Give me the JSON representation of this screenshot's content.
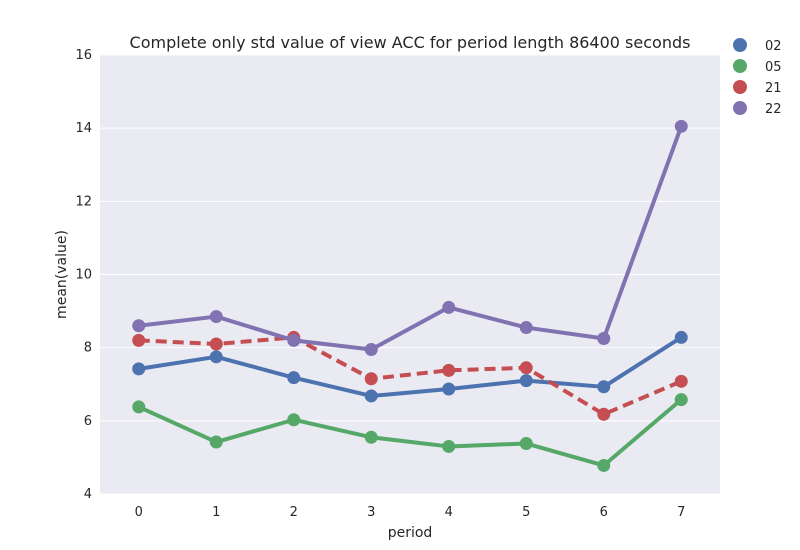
{
  "chart_data": {
    "type": "line",
    "title": "Complete only std value of view ACC for period length 86400 seconds",
    "xlabel": "period",
    "ylabel": "mean(value)",
    "categories": [
      "0",
      "1",
      "2",
      "3",
      "4",
      "5",
      "6",
      "7"
    ],
    "ylim": [
      4,
      16
    ],
    "yticks": [
      "4",
      "6",
      "8",
      "10",
      "12",
      "14",
      "16"
    ],
    "grid": true,
    "legend_position": "top-right outside",
    "series": [
      {
        "name": "02",
        "color": "#4c72b0",
        "dashed": false,
        "values": [
          7.42,
          7.75,
          7.18,
          6.68,
          6.87,
          7.1,
          6.93,
          8.28
        ]
      },
      {
        "name": "05",
        "color": "#55a868",
        "dashed": false,
        "values": [
          6.38,
          5.42,
          6.03,
          5.55,
          5.3,
          5.38,
          4.78,
          6.58
        ]
      },
      {
        "name": "21",
        "color": "#c44e52",
        "dashed": true,
        "values": [
          8.2,
          8.1,
          8.28,
          7.15,
          7.38,
          7.45,
          6.18,
          7.08
        ]
      },
      {
        "name": "22",
        "color": "#8172b2",
        "dashed": false,
        "values": [
          8.6,
          8.85,
          8.2,
          7.95,
          9.1,
          8.55,
          8.25,
          14.05
        ]
      }
    ],
    "background_color": "#eaeaf2",
    "grid_color": "#ffffff"
  }
}
